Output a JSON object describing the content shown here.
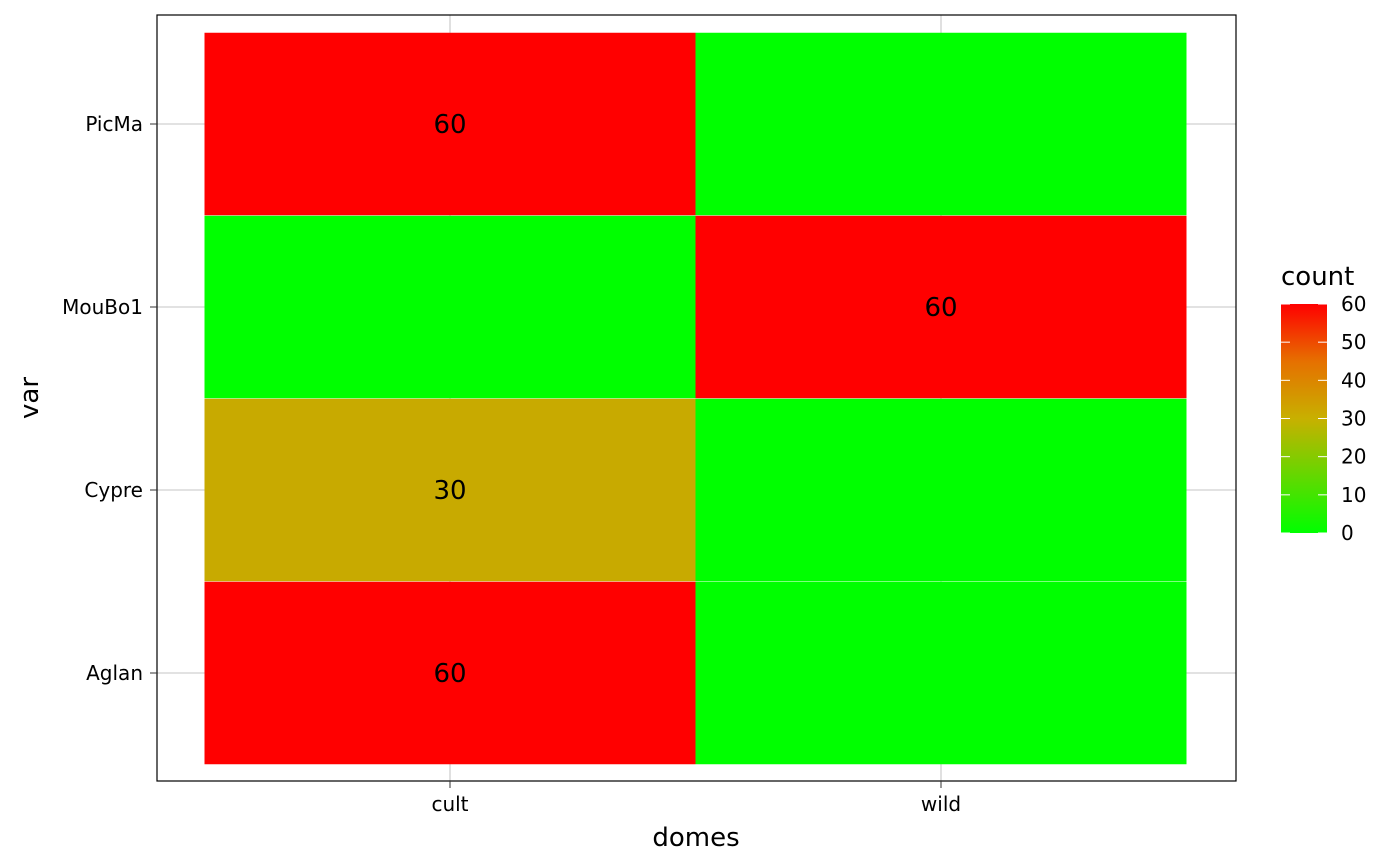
{
  "chart_data": {
    "type": "heatmap",
    "x_categories": [
      "cult",
      "wild"
    ],
    "y_categories": [
      "Aglan",
      "Cypre",
      "MouBo1",
      "PicMa"
    ],
    "xlabel": "domes",
    "ylabel": "var",
    "cells": [
      {
        "x": "cult",
        "y": "Aglan",
        "value": 60,
        "label": "60"
      },
      {
        "x": "wild",
        "y": "Aglan",
        "value": 0,
        "label": ""
      },
      {
        "x": "cult",
        "y": "Cypre",
        "value": 30,
        "label": "30"
      },
      {
        "x": "wild",
        "y": "Cypre",
        "value": 0,
        "label": ""
      },
      {
        "x": "cult",
        "y": "MouBo1",
        "value": 0,
        "label": ""
      },
      {
        "x": "wild",
        "y": "MouBo1",
        "value": 60,
        "label": "60"
      },
      {
        "x": "cult",
        "y": "PicMa",
        "value": 60,
        "label": "60"
      },
      {
        "x": "wild",
        "y": "PicMa",
        "value": 0,
        "label": ""
      }
    ],
    "legend": {
      "title": "count",
      "ticks": [
        0,
        10,
        20,
        30,
        40,
        50,
        60
      ],
      "tick_labels": [
        "0",
        "10",
        "20",
        "30",
        "40",
        "50",
        "60"
      ],
      "range": [
        0,
        60
      ],
      "low_color": "#00FF00",
      "high_color": "#FF0000",
      "placement": "right"
    },
    "grid": true,
    "colors": {
      "panel_border": "#000000",
      "grid_line": "#b3b3b3"
    }
  }
}
